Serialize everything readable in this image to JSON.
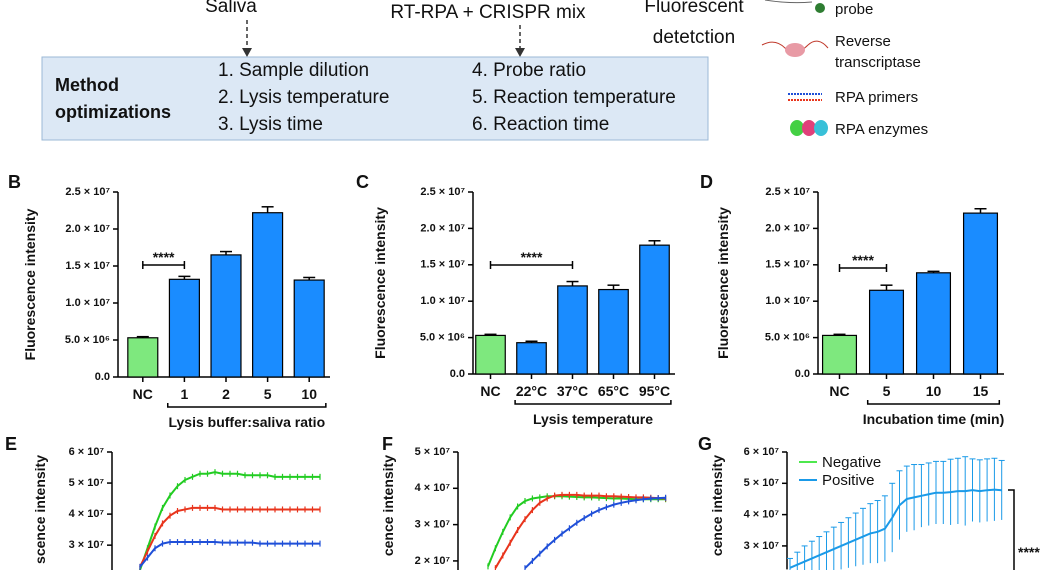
{
  "diagram": {
    "steps": [
      "Saliva",
      "RT-RPA + CRISPR mix"
    ],
    "detection_lines": [
      "Fluorescent",
      "detetction"
    ],
    "box": {
      "title_lines": [
        "Method",
        "optimizations"
      ],
      "items": [
        "1. Sample dilution",
        "2. Lysis temperature",
        "3. Lysis time",
        "4. Probe ratio",
        "5. Reaction temperature",
        "6. Reaction time"
      ]
    },
    "legend": [
      [
        "probe"
      ],
      [
        "Reverse",
        "transcriptase"
      ],
      [
        "RPA primers"
      ],
      [
        "RPA enzymes"
      ]
    ]
  },
  "chart_data": [
    {
      "type": "bar",
      "panel": "B",
      "ylabel": "Fluorescence intensity",
      "xlabel": "Lysis buffer:saliva ratio",
      "categories": [
        "NC",
        "1",
        "2",
        "5",
        "10"
      ],
      "values": [
        5300000,
        13200000,
        16500000,
        22200000,
        13100000
      ],
      "errors": [
        150000,
        400000,
        450000,
        800000,
        350000
      ],
      "colors": [
        "#7ee87e",
        "#1a8cff",
        "#1a8cff",
        "#1a8cff",
        "#1a8cff"
      ],
      "significance": "****",
      "ylim": [
        0,
        25000000
      ],
      "yticks": [
        {
          "value": 0,
          "label": "0.0"
        },
        {
          "value": 5000000,
          "label": "5.0 × 10⁶"
        },
        {
          "value": 10000000,
          "label": "1.0 × 10⁷"
        },
        {
          "value": 15000000,
          "label": "1.5 × 10⁷"
        },
        {
          "value": 20000000,
          "label": "2.0 × 10⁷"
        },
        {
          "value": 25000000,
          "label": "2.5 × 10⁷"
        }
      ]
    },
    {
      "type": "bar",
      "panel": "C",
      "ylabel": "Fluorescence intensity",
      "xlabel": "Lysis temperature",
      "categories": [
        "NC",
        "22°C",
        "37°C",
        "65°C",
        "95°C"
      ],
      "values": [
        5300000,
        4300000,
        12100000,
        11600000,
        17700000
      ],
      "errors": [
        150000,
        200000,
        600000,
        600000,
        600000
      ],
      "colors": [
        "#7ee87e",
        "#1a8cff",
        "#1a8cff",
        "#1a8cff",
        "#1a8cff"
      ],
      "significance": "****",
      "ylim": [
        0,
        25000000
      ],
      "yticks": [
        {
          "value": 0,
          "label": "0.0"
        },
        {
          "value": 5000000,
          "label": "5.0 × 10⁶"
        },
        {
          "value": 10000000,
          "label": "1.0 × 10⁷"
        },
        {
          "value": 15000000,
          "label": "1.5 × 10⁷"
        },
        {
          "value": 20000000,
          "label": "2.0 × 10⁷"
        },
        {
          "value": 25000000,
          "label": "2.5 × 10⁷"
        }
      ]
    },
    {
      "type": "bar",
      "panel": "D",
      "ylabel": "Fluorescence intensity",
      "xlabel": "Incubation time (min)",
      "categories": [
        "NC",
        "5",
        "10",
        "15"
      ],
      "values": [
        5300000,
        11500000,
        13900000,
        22100000
      ],
      "errors": [
        150000,
        700000,
        200000,
        600000
      ],
      "colors": [
        "#7ee87e",
        "#1a8cff",
        "#1a8cff",
        "#1a8cff"
      ],
      "significance": "****",
      "ylim": [
        0,
        25000000
      ],
      "yticks": [
        {
          "value": 0,
          "label": "0.0"
        },
        {
          "value": 5000000,
          "label": "5.0 × 10⁶"
        },
        {
          "value": 10000000,
          "label": "1.0 × 10⁷"
        },
        {
          "value": 15000000,
          "label": "1.5 × 10⁷"
        },
        {
          "value": 20000000,
          "label": "2.0 × 10⁷"
        },
        {
          "value": 25000000,
          "label": "2.5 × 10⁷"
        }
      ]
    },
    {
      "type": "line",
      "panel": "E",
      "ylabel": "scence intensity",
      "series": [
        {
          "color": "#22cc22",
          "values": [
            22000000,
            29000000,
            36000000,
            42000000,
            46000000,
            49000000,
            51000000,
            52000000,
            53000000,
            53000000,
            53500000,
            53000000,
            53000000,
            53000000,
            52500000,
            52500000,
            52500000,
            52500000,
            52000000,
            52000000,
            52000000,
            52000000,
            52000000,
            52000000,
            52000000
          ]
        },
        {
          "color": "#e8341c",
          "values": [
            23000000,
            28000000,
            33000000,
            37000000,
            39500000,
            41000000,
            41500000,
            42000000,
            42000000,
            42000000,
            42000000,
            41500000,
            41500000,
            41500000,
            41500000,
            41500000,
            41500000,
            41500000,
            41500000,
            41500000,
            41500000,
            41500000,
            41500000,
            41500000,
            41500000
          ]
        },
        {
          "color": "#1f4fd8",
          "values": [
            23000000,
            26000000,
            29000000,
            30500000,
            31000000,
            31000000,
            31000000,
            31000000,
            31000000,
            31000000,
            31000000,
            30800000,
            30800000,
            30800000,
            30800000,
            30800000,
            30500000,
            30500000,
            30500000,
            30500000,
            30500000,
            30500000,
            30500000,
            30500000,
            30500000
          ]
        }
      ],
      "ylim": [
        22000000,
        60000000
      ],
      "yticks": [
        {
          "value": 30000000,
          "label": "3 × 10⁷"
        },
        {
          "value": 40000000,
          "label": "4 × 10⁷"
        },
        {
          "value": 50000000,
          "label": "5 × 10⁷"
        },
        {
          "value": 60000000,
          "label": "6 × 10⁷"
        }
      ]
    },
    {
      "type": "line",
      "panel": "F",
      "ylabel": "cence intensity",
      "series": [
        {
          "color": "#22cc22",
          "values": [
            18500000,
            23500000,
            28000000,
            32000000,
            35000000,
            36500000,
            37200000,
            37500000,
            37800000,
            37800000,
            37800000,
            37700000,
            37600000,
            37500000,
            37500000,
            37400000,
            37300000,
            37200000,
            37200000,
            37100000,
            37000000,
            37000000,
            37000000,
            37000000,
            37000000
          ]
        },
        {
          "color": "#e8341c",
          "values": [
            null,
            18000000,
            21500000,
            25000000,
            28500000,
            31500000,
            34000000,
            36000000,
            37200000,
            38000000,
            38200000,
            38200000,
            38200000,
            38000000,
            38000000,
            38000000,
            37800000,
            37800000,
            37700000,
            37600000,
            37500000,
            37500000,
            37400000,
            37300000,
            37200000
          ]
        },
        {
          "color": "#1f4fd8",
          "values": [
            null,
            null,
            null,
            null,
            null,
            18000000,
            20000000,
            22000000,
            24000000,
            25800000,
            27500000,
            29000000,
            30500000,
            31800000,
            33000000,
            34000000,
            34800000,
            35500000,
            36000000,
            36400000,
            36700000,
            37000000,
            37200000,
            37300000,
            37400000
          ]
        }
      ],
      "ylim": [
        17500000,
        50000000
      ],
      "yticks": [
        {
          "value": 20000000,
          "label": "2 × 10⁷"
        },
        {
          "value": 30000000,
          "label": "3 × 10⁷"
        },
        {
          "value": 40000000,
          "label": "4 × 10⁷"
        },
        {
          "value": 50000000,
          "label": "5 × 10⁷"
        }
      ]
    },
    {
      "type": "line",
      "panel": "G",
      "ylabel": "cence intensity",
      "significance": "****",
      "series": [
        {
          "name": "Negative",
          "color": "#4ee84e"
        },
        {
          "name": "Positive",
          "color": "#1a9ae8",
          "values": [
            23000000,
            24000000,
            25000000,
            26000000,
            27000000,
            28000000,
            29000000,
            30000000,
            31000000,
            32000000,
            33000000,
            34000000,
            34500000,
            35500000,
            39000000,
            43000000,
            45000000,
            45500000,
            46000000,
            46500000,
            47000000,
            47000000,
            47200000,
            47500000,
            47500000,
            47800000,
            47500000,
            47800000,
            48000000,
            47800000
          ],
          "errors": [
            3000000,
            4000000,
            5000000,
            5500000,
            6000000,
            6500000,
            7000000,
            7500000,
            8000000,
            8500000,
            9000000,
            9500000,
            10000000,
            10500000,
            11000000,
            11000000,
            10500000,
            10500000,
            10000000,
            10000000,
            10000000,
            10000000,
            10500000,
            10500000,
            11000000,
            10000000,
            10000000,
            10000000,
            10000000,
            9500000
          ]
        }
      ],
      "ylim": [
        22500000,
        60000000
      ],
      "yticks": [
        {
          "value": 30000000,
          "label": "3 × 10⁷"
        },
        {
          "value": 40000000,
          "label": "4 × 10⁷"
        },
        {
          "value": 50000000,
          "label": "5 × 10⁷"
        },
        {
          "value": 60000000,
          "label": "6 × 10⁷"
        }
      ]
    }
  ]
}
